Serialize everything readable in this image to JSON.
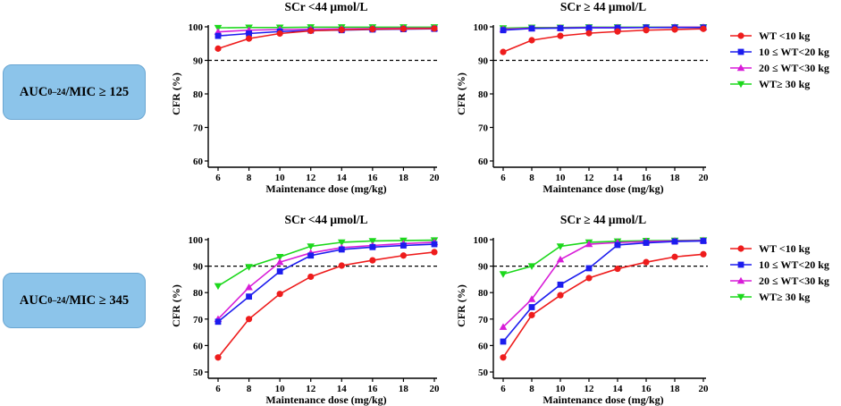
{
  "badges": {
    "top": {
      "prefix": "AUC",
      "sub": "0–24",
      "suffix": "/MIC ≥ 125"
    },
    "bottom": {
      "prefix": "AUC",
      "sub": "0–24",
      "suffix": "/MIC ≥ 345"
    }
  },
  "legend_entries": [
    {
      "label": "WT <10 kg",
      "color": "#ee1c1c",
      "marker": "circle"
    },
    {
      "label": "10 ≤  WT<20 kg",
      "color": "#1c1cee",
      "marker": "square"
    },
    {
      "label": "20 ≤  WT<30 kg",
      "color": "#d81cd8",
      "marker": "triangle-up"
    },
    {
      "label": "WT≥  30 kg",
      "color": "#1cd81c",
      "marker": "triangle-down"
    }
  ],
  "chart_data": [
    {
      "id": "top-left",
      "type": "line",
      "title": "SCr <44 μmol/L",
      "xlabel": "Maintenance dose (mg/kg)",
      "ylabel": "CFR (%)",
      "x": [
        6,
        8,
        10,
        12,
        14,
        16,
        18,
        20
      ],
      "xlim": [
        6,
        20
      ],
      "ylim": [
        60,
        100
      ],
      "yticks": [
        60,
        70,
        80,
        90,
        100
      ],
      "reference_line": 90,
      "series": [
        {
          "name": "WT <10 kg",
          "values": [
            93.5,
            96.5,
            98,
            98.8,
            99.1,
            99.3,
            99.4,
            99.5
          ]
        },
        {
          "name": "10 ≤  WT<20 kg",
          "values": [
            97.3,
            98,
            98.6,
            98.9,
            99,
            99.2,
            99.3,
            99.4
          ]
        },
        {
          "name": "20 ≤  WT<30 kg",
          "values": [
            98.5,
            99,
            99.2,
            99.3,
            99.4,
            99.5,
            99.6,
            99.6
          ]
        },
        {
          "name": "WT≥  30 kg",
          "values": [
            99.7,
            99.8,
            99.8,
            99.9,
            99.9,
            99.9,
            99.9,
            99.9
          ]
        }
      ]
    },
    {
      "id": "top-right",
      "type": "line",
      "title": "SCr ≥ 44 μmol/L",
      "xlabel": "Maintenance dose (mg/kg)",
      "ylabel": "CFR (%)",
      "x": [
        6,
        8,
        10,
        12,
        14,
        16,
        18,
        20
      ],
      "xlim": [
        6,
        20
      ],
      "ylim": [
        60,
        100
      ],
      "yticks": [
        60,
        70,
        80,
        90,
        100
      ],
      "reference_line": 90,
      "legend": "right",
      "series": [
        {
          "name": "WT <10 kg",
          "values": [
            92.5,
            96,
            97.3,
            98.1,
            98.6,
            99,
            99.2,
            99.4
          ]
        },
        {
          "name": "10 ≤  WT<20 kg",
          "values": [
            99,
            99.5,
            99.6,
            99.7,
            99.7,
            99.8,
            99.8,
            99.8
          ]
        },
        {
          "name": "20 ≤  WT<30 kg",
          "values": [
            99.3,
            99.6,
            99.7,
            99.8,
            99.8,
            99.8,
            99.9,
            99.9
          ]
        },
        {
          "name": "WT≥  30 kg",
          "values": [
            99.6,
            99.8,
            99.8,
            99.9,
            99.9,
            99.9,
            99.9,
            99.9
          ]
        }
      ]
    },
    {
      "id": "bottom-left",
      "type": "line",
      "title": "SCr <44 μmol/L",
      "xlabel": "Maintenance dose (mg/kg)",
      "ylabel": "CFR (%)",
      "x": [
        6,
        8,
        10,
        12,
        14,
        16,
        18,
        20
      ],
      "xlim": [
        6,
        20
      ],
      "ylim": [
        50,
        100
      ],
      "yticks": [
        50,
        60,
        70,
        80,
        90,
        100
      ],
      "reference_line": 90,
      "series": [
        {
          "name": "WT <10 kg",
          "values": [
            55.5,
            70,
            79.5,
            86,
            90.2,
            92.2,
            94,
            95.3
          ]
        },
        {
          "name": "10 ≤  WT<20 kg",
          "values": [
            69,
            78.5,
            88,
            94,
            96.3,
            97.2,
            97.8,
            98.3
          ]
        },
        {
          "name": "20 ≤  WT<30 kg",
          "values": [
            70,
            82,
            91.5,
            95,
            97,
            97.8,
            98.5,
            99
          ]
        },
        {
          "name": "WT≥  30 kg",
          "values": [
            82.5,
            89.7,
            93.5,
            97.5,
            99,
            99.5,
            99.7,
            99.8
          ]
        }
      ]
    },
    {
      "id": "bottom-right",
      "type": "line",
      "title": "SCr ≥ 44 μmol/L",
      "xlabel": "Maintenance dose (mg/kg)",
      "ylabel": "CFR (%)",
      "x": [
        6,
        8,
        10,
        12,
        14,
        16,
        18,
        20
      ],
      "xlim": [
        6,
        20
      ],
      "ylim": [
        50,
        100
      ],
      "yticks": [
        50,
        60,
        70,
        80,
        90,
        100
      ],
      "reference_line": 90,
      "legend": "right",
      "series": [
        {
          "name": "WT <10 kg",
          "values": [
            55.5,
            71.5,
            79,
            85.5,
            89,
            91.5,
            93.5,
            94.5
          ]
        },
        {
          "name": "10 ≤  WT<20 kg",
          "values": [
            61.5,
            74.5,
            83,
            89.2,
            98,
            98.8,
            99.3,
            99.5
          ]
        },
        {
          "name": "20 ≤  WT<30 kg",
          "values": [
            67,
            77.5,
            92.5,
            98.3,
            98.9,
            99.3,
            99.5,
            99.7
          ]
        },
        {
          "name": "WT≥  30 kg",
          "values": [
            87,
            90,
            97.5,
            99,
            99.4,
            99.6,
            99.7,
            99.8
          ]
        }
      ]
    }
  ]
}
